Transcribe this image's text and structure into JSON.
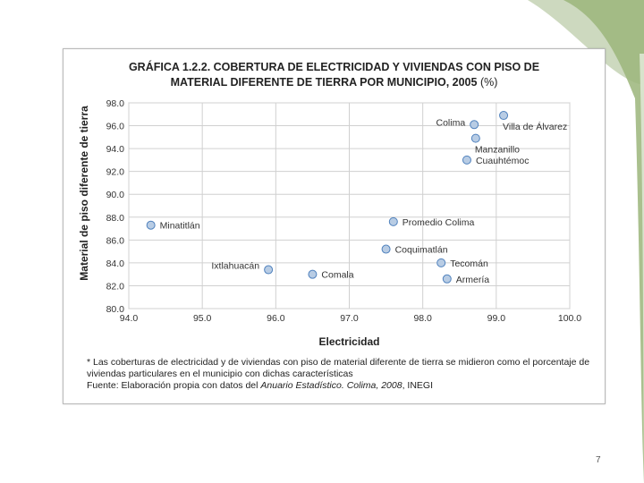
{
  "page": {
    "number": "7"
  },
  "note": {
    "line1": "* Las coberturas de electricidad y de viviendas con piso de material diferente de tierra se midieron como el porcentaje de viviendas particulares en el municipio con dichas características",
    "source_label": "Fuente:",
    "source_text": " Elaboración propia con datos del ",
    "source_italic": "Anuario Estadístico. Colima, 2008",
    "source_end": ", INEGI"
  },
  "colors": {
    "point_fill": "#b8cce4",
    "point_stroke": "#4f81bd",
    "grid": "#d0d0d0",
    "deco_green": "#9bb57a",
    "deco_light": "#cdd9bf"
  },
  "chart_data": {
    "type": "scatter",
    "title_line1": "GRÁFICA 1.2.2. COBERTURA DE ELECTRICIDAD Y VIVIENDAS CON PISO DE",
    "title_line2": "MATERIAL DIFERENTE DE TIERRA POR MUNICIPIO, 2005",
    "title_unit": "(%)",
    "xlabel": "Electricidad",
    "ylabel": "Material de piso diferente de tierra",
    "xlim": [
      94.0,
      100.0
    ],
    "ylim": [
      80.0,
      98.0
    ],
    "xticks": [
      "94.0",
      "95.0",
      "96.0",
      "97.0",
      "98.0",
      "99.0",
      "100.0"
    ],
    "yticks": [
      "80.0",
      "82.0",
      "84.0",
      "86.0",
      "88.0",
      "90.0",
      "92.0",
      "94.0",
      "96.0",
      "98.0"
    ],
    "grid": true,
    "points": [
      {
        "label": "Colima",
        "x": 98.7,
        "y": 96.1,
        "label_pos": "left"
      },
      {
        "label": "Villa de Álvarez",
        "x": 99.1,
        "y": 96.9,
        "label_pos": "below-right"
      },
      {
        "label": "Manzanillo",
        "x": 98.72,
        "y": 94.9,
        "label_pos": "below-right"
      },
      {
        "label": "Cuauhtémoc",
        "x": 98.6,
        "y": 93.0,
        "label_pos": "right"
      },
      {
        "label": "Promedio Colima",
        "x": 97.6,
        "y": 87.6,
        "label_pos": "right"
      },
      {
        "label": "Minatitlán",
        "x": 94.3,
        "y": 87.3,
        "label_pos": "right"
      },
      {
        "label": "Coquimatlán",
        "x": 97.5,
        "y": 85.2,
        "label_pos": "right"
      },
      {
        "label": "Tecomán",
        "x": 98.25,
        "y": 84.0,
        "label_pos": "right"
      },
      {
        "label": "Ixtlahuacán",
        "x": 95.9,
        "y": 83.4,
        "label_pos": "left"
      },
      {
        "label": "Comala",
        "x": 96.5,
        "y": 83.0,
        "label_pos": "right"
      },
      {
        "label": "Armería",
        "x": 98.33,
        "y": 82.6,
        "label_pos": "right"
      }
    ]
  }
}
